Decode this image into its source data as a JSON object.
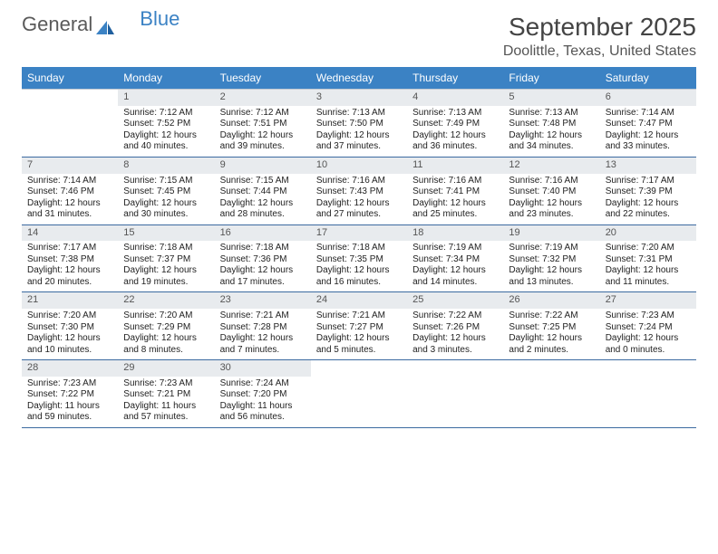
{
  "brand": {
    "part1": "General",
    "part2": "Blue"
  },
  "title": "September 2025",
  "location": "Doolittle, Texas, United States",
  "colors": {
    "header_bg": "#3b82c4",
    "header_text": "#ffffff",
    "row_border": "#3b6aa0",
    "daynum_bg": "#e8ebee",
    "daynum_text": "#555555",
    "body_text": "#222222",
    "title_text": "#444444",
    "location_text": "#555555"
  },
  "day_names": [
    "Sunday",
    "Monday",
    "Tuesday",
    "Wednesday",
    "Thursday",
    "Friday",
    "Saturday"
  ],
  "weeks": [
    [
      {
        "empty": true
      },
      {
        "n": "1",
        "sunrise": "Sunrise: 7:12 AM",
        "sunset": "Sunset: 7:52 PM",
        "day1": "Daylight: 12 hours",
        "day2": "and 40 minutes."
      },
      {
        "n": "2",
        "sunrise": "Sunrise: 7:12 AM",
        "sunset": "Sunset: 7:51 PM",
        "day1": "Daylight: 12 hours",
        "day2": "and 39 minutes."
      },
      {
        "n": "3",
        "sunrise": "Sunrise: 7:13 AM",
        "sunset": "Sunset: 7:50 PM",
        "day1": "Daylight: 12 hours",
        "day2": "and 37 minutes."
      },
      {
        "n": "4",
        "sunrise": "Sunrise: 7:13 AM",
        "sunset": "Sunset: 7:49 PM",
        "day1": "Daylight: 12 hours",
        "day2": "and 36 minutes."
      },
      {
        "n": "5",
        "sunrise": "Sunrise: 7:13 AM",
        "sunset": "Sunset: 7:48 PM",
        "day1": "Daylight: 12 hours",
        "day2": "and 34 minutes."
      },
      {
        "n": "6",
        "sunrise": "Sunrise: 7:14 AM",
        "sunset": "Sunset: 7:47 PM",
        "day1": "Daylight: 12 hours",
        "day2": "and 33 minutes."
      }
    ],
    [
      {
        "n": "7",
        "sunrise": "Sunrise: 7:14 AM",
        "sunset": "Sunset: 7:46 PM",
        "day1": "Daylight: 12 hours",
        "day2": "and 31 minutes."
      },
      {
        "n": "8",
        "sunrise": "Sunrise: 7:15 AM",
        "sunset": "Sunset: 7:45 PM",
        "day1": "Daylight: 12 hours",
        "day2": "and 30 minutes."
      },
      {
        "n": "9",
        "sunrise": "Sunrise: 7:15 AM",
        "sunset": "Sunset: 7:44 PM",
        "day1": "Daylight: 12 hours",
        "day2": "and 28 minutes."
      },
      {
        "n": "10",
        "sunrise": "Sunrise: 7:16 AM",
        "sunset": "Sunset: 7:43 PM",
        "day1": "Daylight: 12 hours",
        "day2": "and 27 minutes."
      },
      {
        "n": "11",
        "sunrise": "Sunrise: 7:16 AM",
        "sunset": "Sunset: 7:41 PM",
        "day1": "Daylight: 12 hours",
        "day2": "and 25 minutes."
      },
      {
        "n": "12",
        "sunrise": "Sunrise: 7:16 AM",
        "sunset": "Sunset: 7:40 PM",
        "day1": "Daylight: 12 hours",
        "day2": "and 23 minutes."
      },
      {
        "n": "13",
        "sunrise": "Sunrise: 7:17 AM",
        "sunset": "Sunset: 7:39 PM",
        "day1": "Daylight: 12 hours",
        "day2": "and 22 minutes."
      }
    ],
    [
      {
        "n": "14",
        "sunrise": "Sunrise: 7:17 AM",
        "sunset": "Sunset: 7:38 PM",
        "day1": "Daylight: 12 hours",
        "day2": "and 20 minutes."
      },
      {
        "n": "15",
        "sunrise": "Sunrise: 7:18 AM",
        "sunset": "Sunset: 7:37 PM",
        "day1": "Daylight: 12 hours",
        "day2": "and 19 minutes."
      },
      {
        "n": "16",
        "sunrise": "Sunrise: 7:18 AM",
        "sunset": "Sunset: 7:36 PM",
        "day1": "Daylight: 12 hours",
        "day2": "and 17 minutes."
      },
      {
        "n": "17",
        "sunrise": "Sunrise: 7:18 AM",
        "sunset": "Sunset: 7:35 PM",
        "day1": "Daylight: 12 hours",
        "day2": "and 16 minutes."
      },
      {
        "n": "18",
        "sunrise": "Sunrise: 7:19 AM",
        "sunset": "Sunset: 7:34 PM",
        "day1": "Daylight: 12 hours",
        "day2": "and 14 minutes."
      },
      {
        "n": "19",
        "sunrise": "Sunrise: 7:19 AM",
        "sunset": "Sunset: 7:32 PM",
        "day1": "Daylight: 12 hours",
        "day2": "and 13 minutes."
      },
      {
        "n": "20",
        "sunrise": "Sunrise: 7:20 AM",
        "sunset": "Sunset: 7:31 PM",
        "day1": "Daylight: 12 hours",
        "day2": "and 11 minutes."
      }
    ],
    [
      {
        "n": "21",
        "sunrise": "Sunrise: 7:20 AM",
        "sunset": "Sunset: 7:30 PM",
        "day1": "Daylight: 12 hours",
        "day2": "and 10 minutes."
      },
      {
        "n": "22",
        "sunrise": "Sunrise: 7:20 AM",
        "sunset": "Sunset: 7:29 PM",
        "day1": "Daylight: 12 hours",
        "day2": "and 8 minutes."
      },
      {
        "n": "23",
        "sunrise": "Sunrise: 7:21 AM",
        "sunset": "Sunset: 7:28 PM",
        "day1": "Daylight: 12 hours",
        "day2": "and 7 minutes."
      },
      {
        "n": "24",
        "sunrise": "Sunrise: 7:21 AM",
        "sunset": "Sunset: 7:27 PM",
        "day1": "Daylight: 12 hours",
        "day2": "and 5 minutes."
      },
      {
        "n": "25",
        "sunrise": "Sunrise: 7:22 AM",
        "sunset": "Sunset: 7:26 PM",
        "day1": "Daylight: 12 hours",
        "day2": "and 3 minutes."
      },
      {
        "n": "26",
        "sunrise": "Sunrise: 7:22 AM",
        "sunset": "Sunset: 7:25 PM",
        "day1": "Daylight: 12 hours",
        "day2": "and 2 minutes."
      },
      {
        "n": "27",
        "sunrise": "Sunrise: 7:23 AM",
        "sunset": "Sunset: 7:24 PM",
        "day1": "Daylight: 12 hours",
        "day2": "and 0 minutes."
      }
    ],
    [
      {
        "n": "28",
        "sunrise": "Sunrise: 7:23 AM",
        "sunset": "Sunset: 7:22 PM",
        "day1": "Daylight: 11 hours",
        "day2": "and 59 minutes."
      },
      {
        "n": "29",
        "sunrise": "Sunrise: 7:23 AM",
        "sunset": "Sunset: 7:21 PM",
        "day1": "Daylight: 11 hours",
        "day2": "and 57 minutes."
      },
      {
        "n": "30",
        "sunrise": "Sunrise: 7:24 AM",
        "sunset": "Sunset: 7:20 PM",
        "day1": "Daylight: 11 hours",
        "day2": "and 56 minutes."
      },
      {
        "empty": true
      },
      {
        "empty": true
      },
      {
        "empty": true
      },
      {
        "empty": true
      }
    ]
  ]
}
